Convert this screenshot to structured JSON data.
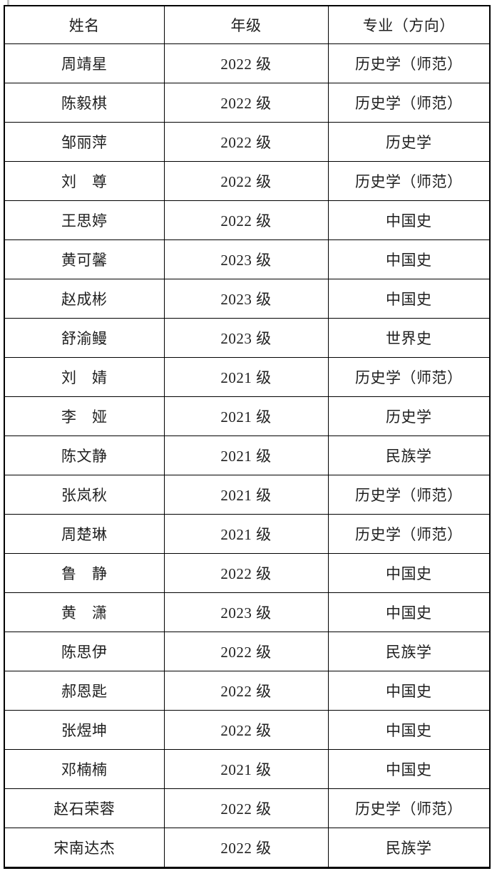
{
  "page": {
    "background_color": "#ffffff",
    "text_color": "#1f1f1f",
    "border_color": "#000000",
    "marker_color": "#c0c0c0"
  },
  "table": {
    "headers": [
      {
        "key": "name",
        "label": "姓名"
      },
      {
        "key": "grade",
        "label": "年级"
      },
      {
        "key": "major",
        "label": "专业（方向）"
      }
    ],
    "rows": [
      {
        "name": "周靖星",
        "grade": "2022 级",
        "major": "历史学（师范）"
      },
      {
        "name": "陈毅棋",
        "grade": "2022 级",
        "major": "历史学（师范）"
      },
      {
        "name": "邹丽萍",
        "grade": "2022 级",
        "major": "历史学"
      },
      {
        "name": "刘　尊",
        "grade": "2022 级",
        "major": "历史学（师范）"
      },
      {
        "name": "王思婷",
        "grade": "2022 级",
        "major": "中国史"
      },
      {
        "name": "黄可馨",
        "grade": "2023 级",
        "major": "中国史"
      },
      {
        "name": "赵成彬",
        "grade": "2023 级",
        "major": "中国史"
      },
      {
        "name": "舒渝鳗",
        "grade": "2023 级",
        "major": "世界史"
      },
      {
        "name": "刘　婧",
        "grade": "2021 级",
        "major": "历史学（师范）"
      },
      {
        "name": "李　娅",
        "grade": "2021 级",
        "major": "历史学"
      },
      {
        "name": "陈文静",
        "grade": "2021 级",
        "major": "民族学"
      },
      {
        "name": "张岚秋",
        "grade": "2021 级",
        "major": "历史学（师范）"
      },
      {
        "name": "周楚琳",
        "grade": "2021 级",
        "major": "历史学（师范）"
      },
      {
        "name": "鲁　静",
        "grade": "2022 级",
        "major": "中国史"
      },
      {
        "name": "黄　潇",
        "grade": "2023 级",
        "major": "中国史"
      },
      {
        "name": "陈思伊",
        "grade": "2022 级",
        "major": "民族学"
      },
      {
        "name": "郝恩匙",
        "grade": "2022 级",
        "major": "中国史"
      },
      {
        "name": "张煜坤",
        "grade": "2022 级",
        "major": "中国史"
      },
      {
        "name": "邓楠楠",
        "grade": "2021 级",
        "major": "中国史"
      },
      {
        "name": "赵石荣蓉",
        "grade": "2022 级",
        "major": "历史学（师范）"
      },
      {
        "name": "宋南达杰",
        "grade": "2022 级",
        "major": "民族学"
      }
    ]
  }
}
